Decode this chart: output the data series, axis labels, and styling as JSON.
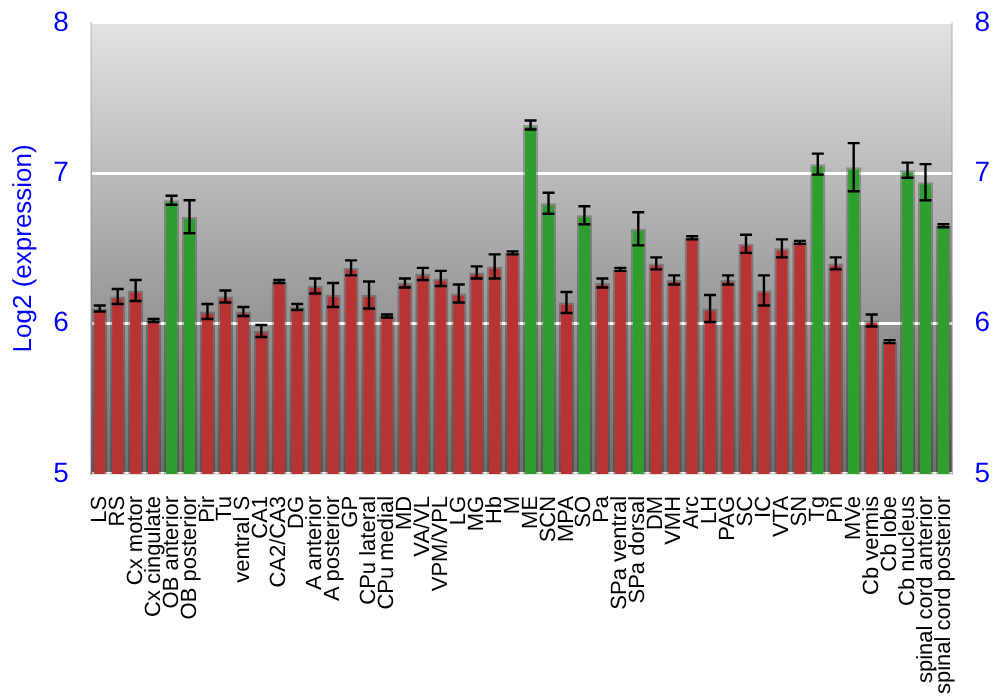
{
  "chart_data": {
    "type": "bar",
    "ylabel": "Log2 (expression)",
    "categories": [
      "LS",
      "RS",
      "Cx motor",
      "Cx cingulate",
      "OB anterior",
      "OB posterior",
      "Pir",
      "Tu",
      "ventral S",
      "CA1",
      "CA2/CA3",
      "DG",
      "A anterior",
      "A posterior",
      "GP",
      "CPu lateral",
      "CPu medial",
      "MD",
      "VA/VL",
      "VPM/VPL",
      "LG",
      "MG",
      "Hb",
      "M",
      "ME",
      "SCN",
      "MPA",
      "SO",
      "Pa",
      "SPa ventral",
      "SPa dorsal",
      "DM",
      "VMH",
      "Arc",
      "LH",
      "PAG",
      "SC",
      "IC",
      "VTA",
      "SN",
      "Tg",
      "Pn",
      "MVe",
      "Cb vermis",
      "Cb lobe",
      "Cb nucleus",
      "spinal cord anterior",
      "spinal cord posterior"
    ],
    "values": [
      6.1,
      6.18,
      6.22,
      6.02,
      6.82,
      6.71,
      6.08,
      6.18,
      6.08,
      5.95,
      6.28,
      6.11,
      6.25,
      6.19,
      6.37,
      6.19,
      6.05,
      6.27,
      6.33,
      6.3,
      6.2,
      6.34,
      6.38,
      6.47,
      7.32,
      6.8,
      6.14,
      6.72,
      6.27,
      6.36,
      6.63,
      6.4,
      6.29,
      6.57,
      6.1,
      6.29,
      6.53,
      6.22,
      6.5,
      6.54,
      7.06,
      6.4,
      7.04,
      6.02,
      5.88,
      7.02,
      6.94,
      6.65
    ],
    "errors": [
      0.02,
      0.05,
      0.07,
      0.01,
      0.03,
      0.11,
      0.05,
      0.04,
      0.03,
      0.04,
      0.01,
      0.02,
      0.05,
      0.08,
      0.05,
      0.09,
      0.01,
      0.03,
      0.04,
      0.05,
      0.06,
      0.04,
      0.08,
      0.01,
      0.03,
      0.07,
      0.07,
      0.06,
      0.03,
      0.01,
      0.11,
      0.04,
      0.03,
      0.01,
      0.09,
      0.03,
      0.06,
      0.1,
      0.06,
      0.01,
      0.07,
      0.04,
      0.16,
      0.04,
      0.01,
      0.05,
      0.12,
      0.01
    ],
    "colors": [
      "#b83333",
      "#b83333",
      "#b83333",
      "#b83333",
      "#2e9e2e",
      "#2e9e2e",
      "#b83333",
      "#b83333",
      "#b83333",
      "#b83333",
      "#b83333",
      "#b83333",
      "#b83333",
      "#b83333",
      "#b83333",
      "#b83333",
      "#b83333",
      "#b83333",
      "#b83333",
      "#b83333",
      "#b83333",
      "#b83333",
      "#b83333",
      "#b83333",
      "#2e9e2e",
      "#2e9e2e",
      "#b83333",
      "#2e9e2e",
      "#b83333",
      "#b83333",
      "#2e9e2e",
      "#b83333",
      "#b83333",
      "#b83333",
      "#b83333",
      "#b83333",
      "#b83333",
      "#b83333",
      "#b83333",
      "#b83333",
      "#2e9e2e",
      "#b83333",
      "#2e9e2e",
      "#b83333",
      "#b83333",
      "#2e9e2e",
      "#2e9e2e",
      "#2e9e2e"
    ],
    "ylim": [
      5,
      8
    ],
    "yticks": [
      5,
      6,
      7,
      8
    ],
    "y2lim": [
      5,
      8
    ],
    "y2ticks": [
      5,
      6,
      7,
      8
    ],
    "grid": "y",
    "legend": false
  }
}
